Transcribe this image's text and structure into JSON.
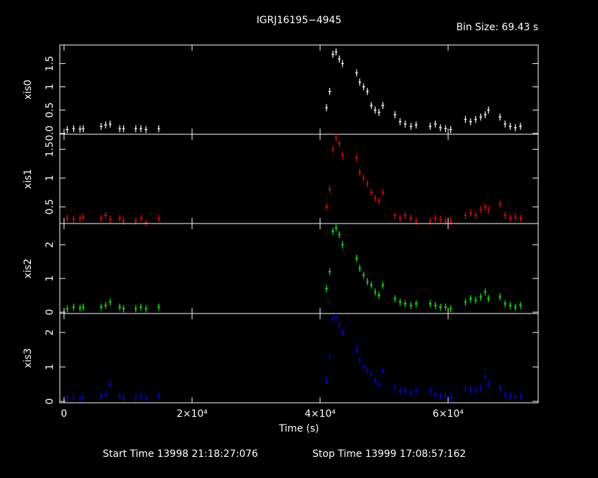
{
  "chart_data": {
    "type": "scatter",
    "title": "IGRJ16195−4945",
    "bin_size": "Bin Size: 69.43 s",
    "xlabel": "Time (s)",
    "start_time": "Start Time 13998 21:18:27:076",
    "stop_time": "Stop Time 13999 17:08:57:162",
    "xlim": [
      -660,
      74070
    ],
    "xticks": [
      0,
      {
        "value": 20000,
        "label": "2×10⁴"
      },
      {
        "value": 40000,
        "label": "4×10⁴"
      },
      {
        "value": 60000,
        "label": "6×10⁴"
      }
    ],
    "x": [
      500,
      1500,
      2500,
      3000,
      5800,
      6500,
      7200,
      8700,
      9300,
      11200,
      12000,
      12800,
      14800,
      41000,
      41500,
      42000,
      42500,
      43000,
      43500,
      45700,
      46200,
      46800,
      47400,
      48000,
      48600,
      49200,
      49800,
      51700,
      52500,
      53300,
      54200,
      55000,
      57200,
      58000,
      58800,
      59600,
      60400,
      62700,
      63500,
      64300,
      65100,
      65800,
      66300,
      68100,
      68900,
      69700,
      70500,
      71300
    ],
    "series": [
      {
        "name": "xis0",
        "color": "#ffffff",
        "ylim": [
          -0.02,
          1.9
        ],
        "yticks": [
          {
            "value": 0,
            "label": "0.0"
          },
          0.5,
          1,
          1.5
        ],
        "values": [
          0.08,
          0.1,
          0.09,
          0.1,
          0.15,
          0.18,
          0.2,
          0.1,
          0.1,
          0.1,
          0.1,
          0.08,
          0.1,
          0.55,
          0.9,
          1.7,
          1.75,
          1.6,
          1.5,
          1.3,
          1.1,
          1.0,
          0.9,
          0.6,
          0.5,
          0.45,
          0.6,
          0.4,
          0.25,
          0.2,
          0.15,
          0.18,
          0.15,
          0.2,
          0.12,
          0.1,
          0.08,
          0.3,
          0.25,
          0.3,
          0.35,
          0.4,
          0.5,
          0.35,
          0.2,
          0.15,
          0.12,
          0.15
        ]
      },
      {
        "name": "xis1",
        "color": "#ff0000",
        "ylim": [
          0.21,
          1.76
        ],
        "yticks": [
          0.5,
          1,
          1.5
        ],
        "values": [
          0.3,
          0.28,
          0.3,
          0.32,
          0.3,
          0.35,
          0.28,
          0.3,
          0.25,
          0.25,
          0.3,
          0.22,
          0.3,
          0.5,
          0.8,
          1.5,
          1.7,
          1.6,
          1.4,
          1.35,
          1.1,
          1.0,
          0.9,
          0.75,
          0.65,
          0.6,
          0.75,
          0.35,
          0.3,
          0.35,
          0.3,
          0.25,
          0.25,
          0.3,
          0.28,
          0.25,
          0.25,
          0.35,
          0.4,
          0.35,
          0.45,
          0.5,
          0.45,
          0.55,
          0.35,
          0.3,
          0.32,
          0.3
        ]
      },
      {
        "name": "xis2",
        "color": "#00ff00",
        "ylim": [
          -0.04,
          2.63
        ],
        "yticks": [
          0,
          1,
          2
        ],
        "values": [
          0.1,
          0.15,
          0.12,
          0.15,
          0.15,
          0.2,
          0.3,
          0.15,
          0.1,
          0.1,
          0.15,
          0.1,
          0.15,
          0.7,
          1.2,
          2.4,
          2.5,
          2.3,
          2.0,
          1.6,
          1.3,
          1.1,
          0.9,
          0.8,
          0.6,
          0.5,
          0.8,
          0.4,
          0.3,
          0.25,
          0.2,
          0.25,
          0.25,
          0.2,
          0.15,
          0.15,
          0.1,
          0.3,
          0.4,
          0.35,
          0.45,
          0.6,
          0.4,
          0.45,
          0.25,
          0.2,
          0.15,
          0.2
        ]
      },
      {
        "name": "xis3",
        "color": "#0000ff",
        "ylim": [
          -0.04,
          2.55
        ],
        "yticks": [
          0,
          1,
          2
        ],
        "values": [
          0.1,
          0.12,
          0.1,
          0.12,
          0.15,
          0.2,
          0.5,
          0.15,
          0.1,
          0.1,
          0.15,
          0.1,
          0.15,
          0.6,
          1.3,
          2.4,
          2.45,
          2.2,
          2.0,
          1.5,
          1.2,
          1.0,
          0.9,
          0.8,
          0.6,
          0.5,
          0.9,
          0.4,
          0.3,
          0.3,
          0.25,
          0.3,
          0.3,
          0.2,
          0.15,
          0.15,
          0.1,
          0.35,
          0.35,
          0.3,
          0.4,
          0.7,
          0.5,
          0.4,
          0.2,
          0.15,
          0.12,
          0.15
        ]
      }
    ]
  }
}
